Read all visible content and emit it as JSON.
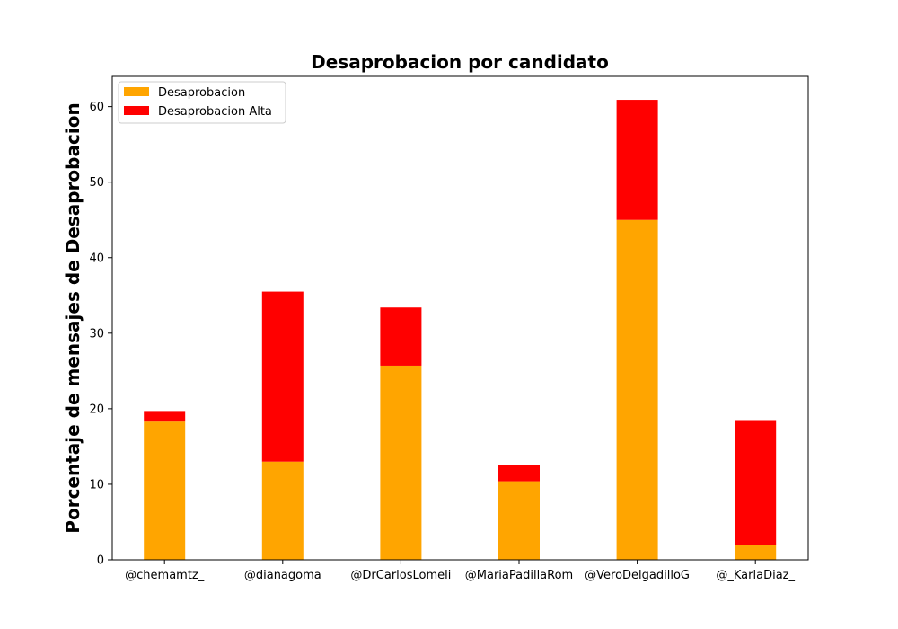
{
  "chart_data": {
    "type": "bar",
    "stacked": true,
    "title": "Desaprobacion por candidato",
    "xlabel": "",
    "ylabel": "Porcentaje de mensajes de Desaprobacion",
    "categories": [
      "@chemamtz_",
      "@dianagoma",
      "@DrCarlosLomeli",
      "@MariaPadillaRom",
      "@VeroDelgadilloG",
      "@_KarlaDiaz_"
    ],
    "series": [
      {
        "name": "Desaprobacion",
        "color": "#ffa500",
        "values": [
          18.3,
          13.0,
          25.7,
          10.4,
          45.0,
          2.0
        ]
      },
      {
        "name": "Desaprobacion Alta",
        "color": "#ff0000",
        "values": [
          1.4,
          22.5,
          7.7,
          2.2,
          15.9,
          16.5
        ]
      }
    ],
    "ylim": [
      0,
      64
    ],
    "yticks": [
      0,
      10,
      20,
      30,
      40,
      50,
      60
    ],
    "grid": false,
    "legend_position": "top-left"
  }
}
